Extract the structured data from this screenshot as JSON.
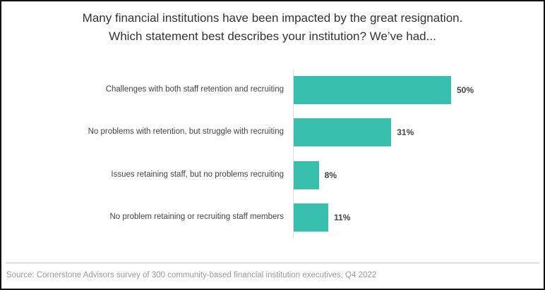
{
  "chart_data": {
    "type": "bar",
    "orientation": "horizontal",
    "title": [
      "Many financial institutions have been impacted by the great resignation.",
      "Which statement best describes your institution? We’ve had..."
    ],
    "categories": [
      "Challenges with both staff retention and recruiting",
      "No problems with retention, but struggle with recruiting",
      "Issues retaining staff, but no problems recruiting",
      "No problem retaining or recruiting staff members"
    ],
    "values": [
      50,
      31,
      8,
      11
    ],
    "labels": [
      "50%",
      "31%",
      "8%",
      "11%"
    ],
    "xlim": [
      0,
      50
    ],
    "unit": "%",
    "grid": false,
    "color": "#38bfae"
  },
  "footer": {
    "source": "Source: Cornerstone Advisors survey of 300 community-based financial institution executives, Q4 2022"
  }
}
